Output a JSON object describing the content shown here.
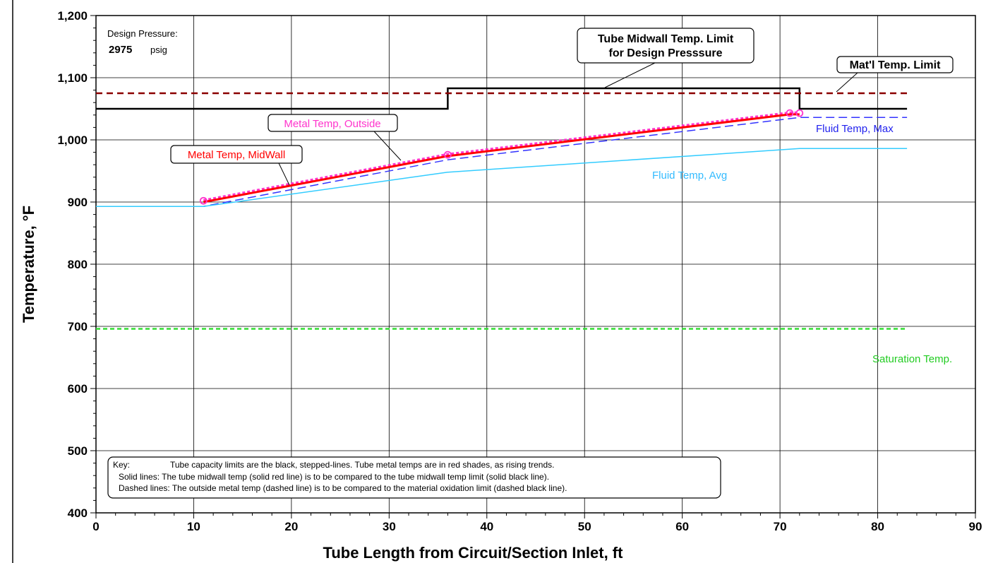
{
  "chart_data": {
    "type": "line",
    "xlabel": "Tube Length from Circuit/Section Inlet, ft",
    "ylabel": "Temperature, °F",
    "xlim": [
      0,
      90
    ],
    "ylim": [
      400,
      1200
    ],
    "x_ticks": [
      0,
      10,
      20,
      30,
      40,
      50,
      60,
      70,
      80,
      90
    ],
    "y_ticks": [
      400,
      500,
      600,
      700,
      800,
      900,
      1000,
      1100,
      1200
    ],
    "y_tick_labels": [
      "400",
      "500",
      "600",
      "700",
      "800",
      "900",
      "1,000",
      "1,100",
      "1,200"
    ],
    "grid": true,
    "series": [
      {
        "name": "Tube Midwall Temp. Limit for Design Presssure",
        "color": "#000000",
        "style": "solid",
        "x": [
          0,
          36,
          36,
          72,
          72,
          83
        ],
        "y": [
          1050,
          1050,
          1083,
          1083,
          1050,
          1050
        ]
      },
      {
        "name": "Mat'l Temp. Limit",
        "color": "#8b0000",
        "style": "dashed",
        "x": [
          0,
          83
        ],
        "y": [
          1075,
          1075
        ]
      },
      {
        "name": "Metal Temp, Outside",
        "color": "#ff33cc",
        "style": "dashed",
        "x": [
          11,
          36,
          71,
          72
        ],
        "y": [
          903,
          977,
          1044,
          1044
        ]
      },
      {
        "name": "Metal Temp, MidWall",
        "color": "#ff0000",
        "style": "solid",
        "x": [
          11,
          36,
          71,
          72
        ],
        "y": [
          900,
          974,
          1041,
          1041
        ]
      },
      {
        "name": "Fluid Temp, Max",
        "color": "#3333ff",
        "style": "dashed",
        "x": [
          0,
          11,
          36,
          72,
          83
        ],
        "y": [
          893,
          893,
          968,
          1036,
          1036
        ]
      },
      {
        "name": "Fluid Temp, Avg",
        "color": "#33ccff",
        "style": "solid",
        "x": [
          0,
          11,
          36,
          72,
          83
        ],
        "y": [
          893,
          893,
          948,
          986,
          986
        ]
      },
      {
        "name": "Saturation Temp.",
        "color": "#33dd33",
        "style": "dashed",
        "x": [
          0,
          83
        ],
        "y": [
          696,
          696
        ]
      }
    ],
    "markers": [
      {
        "x": 11,
        "y": 902
      },
      {
        "x": 36,
        "y": 976
      },
      {
        "x": 71,
        "y": 1043
      },
      {
        "x": 72,
        "y": 1043
      }
    ],
    "annotations": {
      "design_pressure_label": "Design Pressure:",
      "design_pressure_value": "2975",
      "design_pressure_unit": "psig",
      "midwall_limit_line1": "Tube Midwall Temp. Limit",
      "midwall_limit_line2": "for Design Presssure",
      "matl_limit": "Mat'l Temp. Limit",
      "metal_outside": "Metal Temp, Outside",
      "metal_midwall": "Metal Temp, MidWall",
      "fluid_max": "Fluid Temp, Max",
      "fluid_avg": "Fluid Temp, Avg",
      "saturation": "Saturation Temp."
    },
    "key": {
      "line1_label": "Key:",
      "line1_text": "Tube capacity limits are the black, stepped-lines.  Tube metal temps are in red shades, as rising trends.",
      "line2": "Solid lines:  The tube midwall temp (solid red line) is to be compared to the tube midwall temp limit (solid black line).",
      "line3": "Dashed lines:  The outside metal temp (dashed line) is to be compared to the material oxidation limit (dashed black line)."
    }
  }
}
